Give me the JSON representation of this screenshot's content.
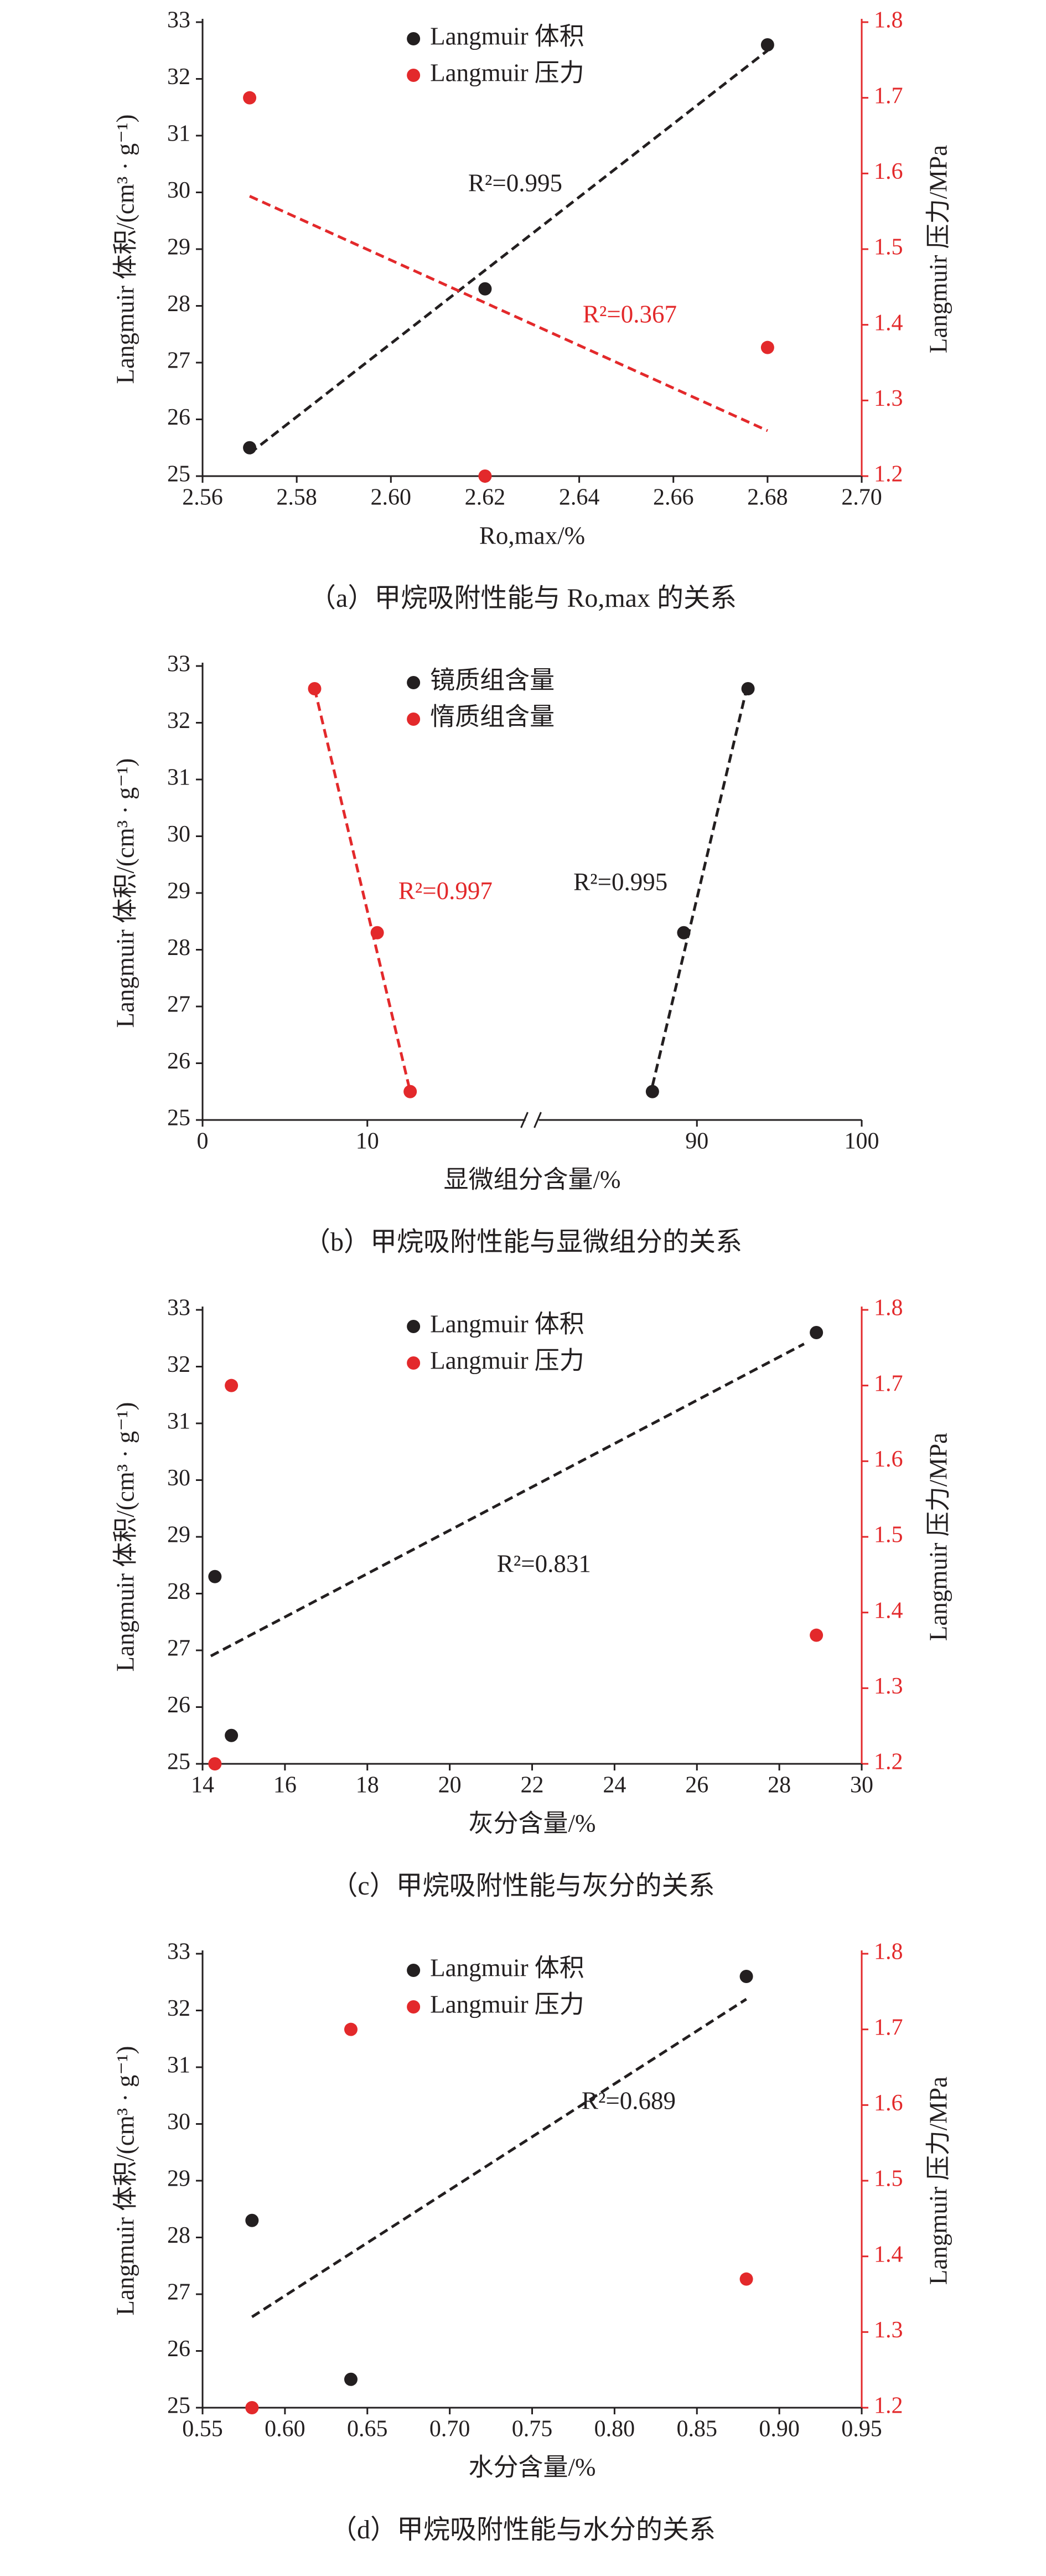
{
  "chart_data": [
    {
      "type": "scatter",
      "caption": "（a）甲烷吸附性能与 Ro,max 的关系",
      "xlabel": "Ro,max/%",
      "ylabel": "Langmuir 体积/(cm³ · g⁻¹)",
      "y2label": "Langmuir 压力/MPa",
      "legend": "upper center",
      "xlim": [
        2.56,
        2.7
      ],
      "xticks": [
        2.56,
        2.58,
        {
          "value": 2.6,
          "label": "2.60"
        },
        2.62,
        2.64,
        2.66,
        2.68,
        {
          "value": 2.7,
          "label": "2.70"
        }
      ],
      "ylim": [
        25,
        33
      ],
      "yticks": [
        25,
        26,
        27,
        28,
        29,
        30,
        31,
        32,
        33
      ],
      "y2lim": [
        1.2,
        1.8
      ],
      "y2ticks": [
        1.2,
        1.3,
        1.4,
        1.5,
        1.6,
        1.7,
        1.8
      ],
      "series": [
        {
          "name": "Langmuir 体积",
          "color": "#231f20",
          "x": [
            2.57,
            2.62,
            2.68
          ],
          "values": [
            25.5,
            28.3,
            32.6
          ]
        },
        {
          "name": "Langmuir 压力",
          "color": "#e3292b",
          "axis": "y2",
          "x": [
            2.57,
            2.62,
            2.68
          ],
          "values": [
            1.7,
            1.2,
            1.37
          ]
        }
      ],
      "trendlines": [
        {
          "label": "R²=0.995",
          "color": "#231f20",
          "x": [
            2.57,
            2.68
          ],
          "values": [
            25.4,
            32.5
          ]
        },
        {
          "label": "R²=0.367",
          "color": "#e3292b",
          "axis": "y2",
          "x": [
            2.57,
            2.68
          ],
          "values": [
            1.57,
            1.26
          ]
        }
      ]
    },
    {
      "type": "scatter",
      "caption": "（b）甲烷吸附性能与显微组分的关系",
      "xlabel": "显微组分含量/%",
      "ylabel": "Langmuir 体积/(cm³ · g⁻¹)",
      "legend": "upper center",
      "xlim": [
        0,
        100
      ],
      "xbreak": [
        20,
        80
      ],
      "xticks": [
        0,
        10,
        90,
        100
      ],
      "ylim": [
        25,
        33
      ],
      "yticks": [
        25,
        26,
        27,
        28,
        29,
        30,
        31,
        32,
        33
      ],
      "series": [
        {
          "name": "镜质组含量",
          "color": "#231f20",
          "x": [
            87.3,
            89.2,
            93.1
          ],
          "values": [
            25.5,
            28.3,
            32.6
          ]
        },
        {
          "name": "惰质组含量",
          "color": "#e3292b",
          "x": [
            12.6,
            10.6,
            6.8
          ],
          "values": [
            25.5,
            28.3,
            32.6
          ]
        }
      ],
      "trendlines": [
        {
          "label": "R²=0.997",
          "color": "#e3292b",
          "x": [
            6.8,
            12.6
          ],
          "values": [
            32.6,
            25.5
          ]
        },
        {
          "label": "R²=0.995",
          "color": "#231f20",
          "x": [
            87.3,
            93.1
          ],
          "values": [
            25.6,
            32.7
          ]
        }
      ]
    },
    {
      "type": "scatter",
      "caption": "（c）甲烷吸附性能与灰分的关系",
      "xlabel": "灰分含量/%",
      "ylabel": "Langmuir 体积/(cm³ · g⁻¹)",
      "y2label": "Langmuir 压力/MPa",
      "legend": "upper center",
      "xlim": [
        14,
        30
      ],
      "xticks": [
        14,
        16,
        18,
        20,
        22,
        24,
        26,
        28,
        30
      ],
      "ylim": [
        25,
        33
      ],
      "yticks": [
        25,
        26,
        27,
        28,
        29,
        30,
        31,
        32,
        33
      ],
      "y2lim": [
        1.2,
        1.8
      ],
      "y2ticks": [
        1.2,
        1.3,
        1.4,
        1.5,
        1.6,
        1.7,
        1.8
      ],
      "series": [
        {
          "name": "Langmuir 体积",
          "color": "#231f20",
          "x": [
            14.3,
            14.7,
            28.9
          ],
          "values": [
            28.3,
            25.5,
            32.6
          ]
        },
        {
          "name": "Langmuir 压力",
          "color": "#e3292b",
          "axis": "y2",
          "x": [
            14.7,
            14.3,
            28.9
          ],
          "values": [
            1.7,
            1.2,
            1.37
          ]
        }
      ],
      "trendlines": [
        {
          "label": "R²=0.831",
          "color": "#231f20",
          "x": [
            14.2,
            28.6
          ],
          "values": [
            26.9,
            32.4
          ]
        }
      ]
    },
    {
      "type": "scatter",
      "caption": "（d）甲烷吸附性能与水分的关系",
      "xlabel": "水分含量/%",
      "ylabel": "Langmuir 体积/(cm³ · g⁻¹)",
      "y2label": "Langmuir 压力/MPa",
      "legend": "upper center",
      "xlim": [
        0.55,
        0.95
      ],
      "xticks": [
        0.55,
        {
          "value": 0.6,
          "label": "0.60"
        },
        0.65,
        {
          "value": 0.7,
          "label": "0.70"
        },
        0.75,
        {
          "value": 0.8,
          "label": "0.80"
        },
        0.85,
        {
          "value": 0.9,
          "label": "0.90"
        },
        0.95
      ],
      "ylim": [
        25,
        33
      ],
      "yticks": [
        25,
        26,
        27,
        28,
        29,
        30,
        31,
        32,
        33
      ],
      "y2lim": [
        1.2,
        1.8
      ],
      "y2ticks": [
        1.2,
        1.3,
        1.4,
        1.5,
        1.6,
        1.7,
        1.8
      ],
      "series": [
        {
          "name": "Langmuir 体积",
          "color": "#231f20",
          "x": [
            0.58,
            0.64,
            0.88
          ],
          "values": [
            28.3,
            25.5,
            32.6
          ]
        },
        {
          "name": "Langmuir 压力",
          "color": "#e3292b",
          "axis": "y2",
          "x": [
            0.64,
            0.58,
            0.88
          ],
          "values": [
            1.7,
            1.2,
            1.37
          ]
        }
      ],
      "trendlines": [
        {
          "label": "R²=0.689",
          "color": "#231f20",
          "x": [
            0.58,
            0.88
          ],
          "values": [
            26.6,
            32.2
          ]
        }
      ]
    }
  ]
}
